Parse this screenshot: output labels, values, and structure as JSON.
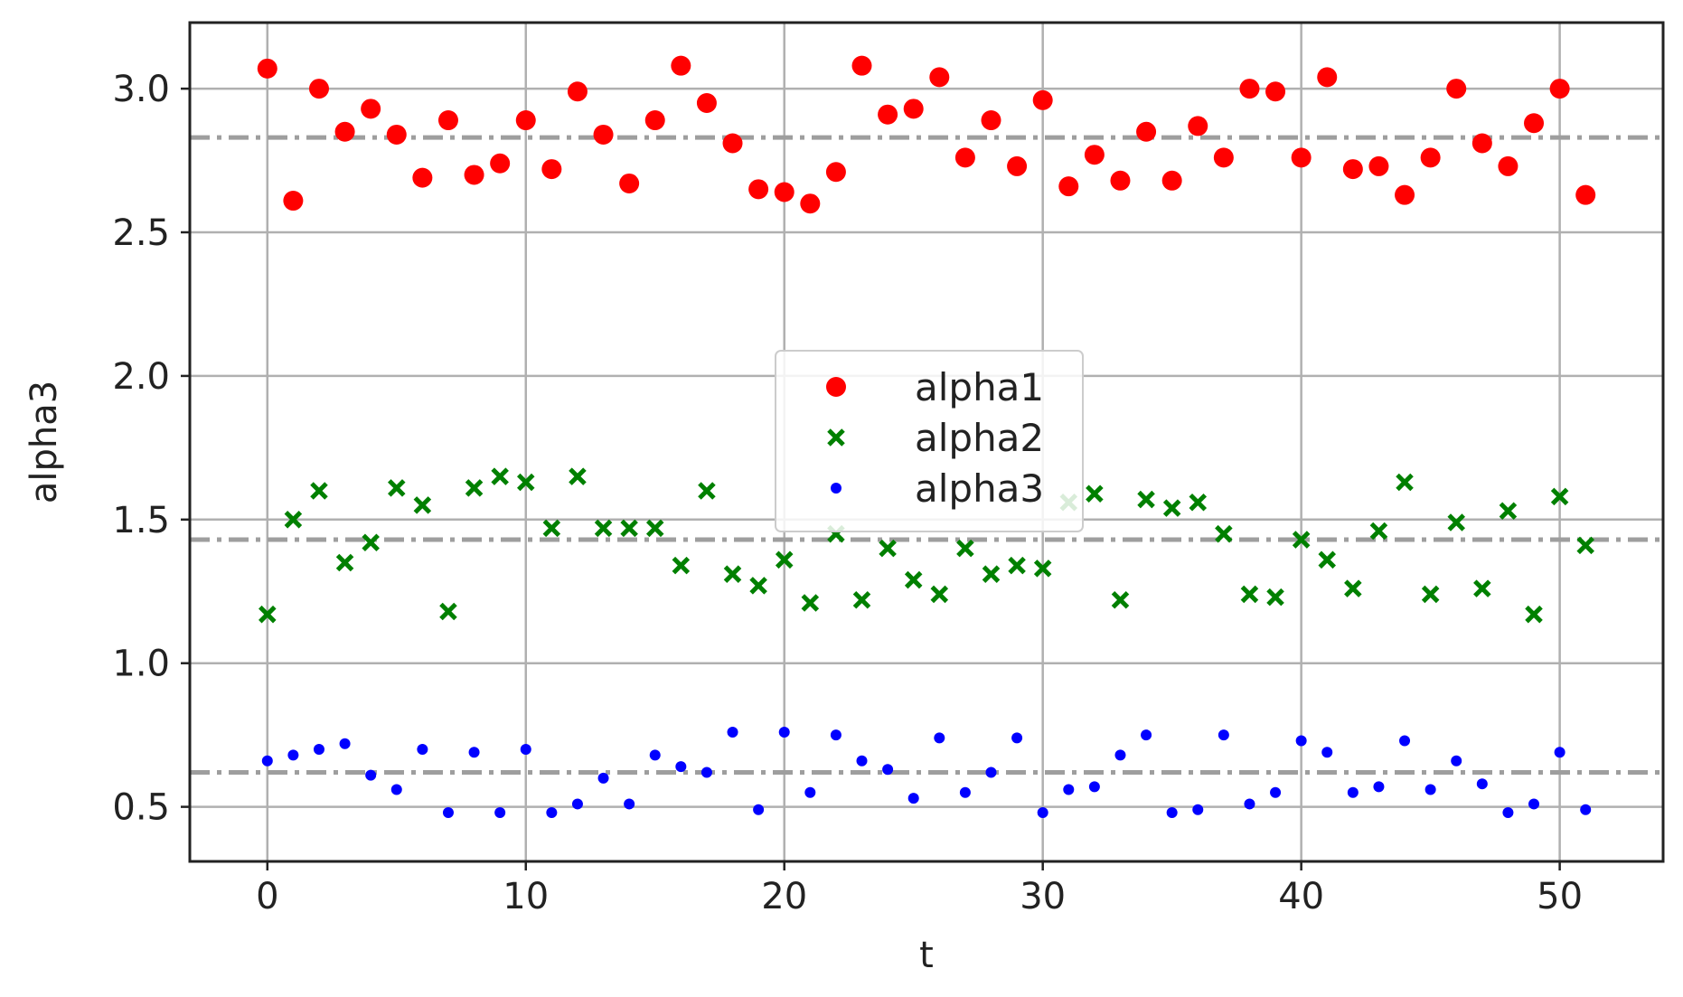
{
  "chart_data": {
    "type": "scatter",
    "xlabel": "t",
    "ylabel": "alpha3",
    "xlim": [
      -3,
      54
    ],
    "ylim": [
      0.31,
      3.23
    ],
    "xticks": [
      0,
      10,
      20,
      30,
      40,
      50
    ],
    "yticks": [
      0.5,
      1.0,
      1.5,
      2.0,
      2.5,
      3.0
    ],
    "grid": true,
    "legend_position": "center",
    "x": [
      0,
      1,
      2,
      3,
      4,
      5,
      6,
      7,
      8,
      9,
      10,
      11,
      12,
      13,
      14,
      15,
      16,
      17,
      18,
      19,
      20,
      21,
      22,
      23,
      24,
      25,
      26,
      27,
      28,
      29,
      30,
      31,
      32,
      33,
      34,
      35,
      36,
      37,
      38,
      39,
      40,
      41,
      42,
      43,
      44,
      45,
      46,
      47,
      48,
      49,
      50,
      51
    ],
    "series": [
      {
        "name": "alpha1",
        "marker": "circle",
        "color": "#ff0000",
        "mean": 2.83,
        "values": [
          3.07,
          2.61,
          3.0,
          2.85,
          2.93,
          2.84,
          2.69,
          2.89,
          2.7,
          2.74,
          2.89,
          2.72,
          2.99,
          2.84,
          2.67,
          2.89,
          3.08,
          2.95,
          2.81,
          2.65,
          2.64,
          2.6,
          2.71,
          3.08,
          2.91,
          2.93,
          3.04,
          2.76,
          2.89,
          2.73,
          2.96,
          2.66,
          2.77,
          2.68,
          2.85,
          2.68,
          2.87,
          2.76,
          3.0,
          2.99,
          2.76,
          3.04,
          2.72,
          2.73,
          2.63,
          2.76,
          3.0,
          2.81,
          2.73,
          2.88,
          3.0,
          2.63
        ]
      },
      {
        "name": "alpha2",
        "marker": "x",
        "color": "#008000",
        "mean": 1.43,
        "values": [
          1.17,
          1.5,
          1.6,
          1.35,
          1.42,
          1.61,
          1.55,
          1.18,
          1.61,
          1.65,
          1.63,
          1.47,
          1.65,
          1.47,
          1.47,
          1.47,
          1.34,
          1.6,
          1.31,
          1.27,
          1.36,
          1.21,
          1.45,
          1.22,
          1.4,
          1.29,
          1.24,
          1.4,
          1.31,
          1.34,
          1.33,
          1.56,
          1.59,
          1.22,
          1.57,
          1.54,
          1.56,
          1.45,
          1.24,
          1.23,
          1.43,
          1.36,
          1.26,
          1.46,
          1.63,
          1.24,
          1.49,
          1.26,
          1.53,
          1.17,
          1.58,
          1.41
        ]
      },
      {
        "name": "alpha3",
        "marker": "point",
        "color": "#0000ff",
        "mean": 0.62,
        "values": [
          0.66,
          0.68,
          0.7,
          0.72,
          0.61,
          0.56,
          0.7,
          0.48,
          0.69,
          0.48,
          0.7,
          0.48,
          0.51,
          0.6,
          0.51,
          0.68,
          0.64,
          0.62,
          0.76,
          0.49,
          0.76,
          0.55,
          0.75,
          0.66,
          0.63,
          0.53,
          0.74,
          0.55,
          0.62,
          0.74,
          0.48,
          0.56,
          0.57,
          0.68,
          0.75,
          0.48,
          0.49,
          0.75,
          0.51,
          0.55,
          0.73,
          0.69,
          0.55,
          0.57,
          0.73,
          0.56,
          0.66,
          0.58,
          0.48,
          0.51,
          0.69,
          0.49
        ]
      }
    ],
    "mean_line_color": "#9e9e9e"
  }
}
